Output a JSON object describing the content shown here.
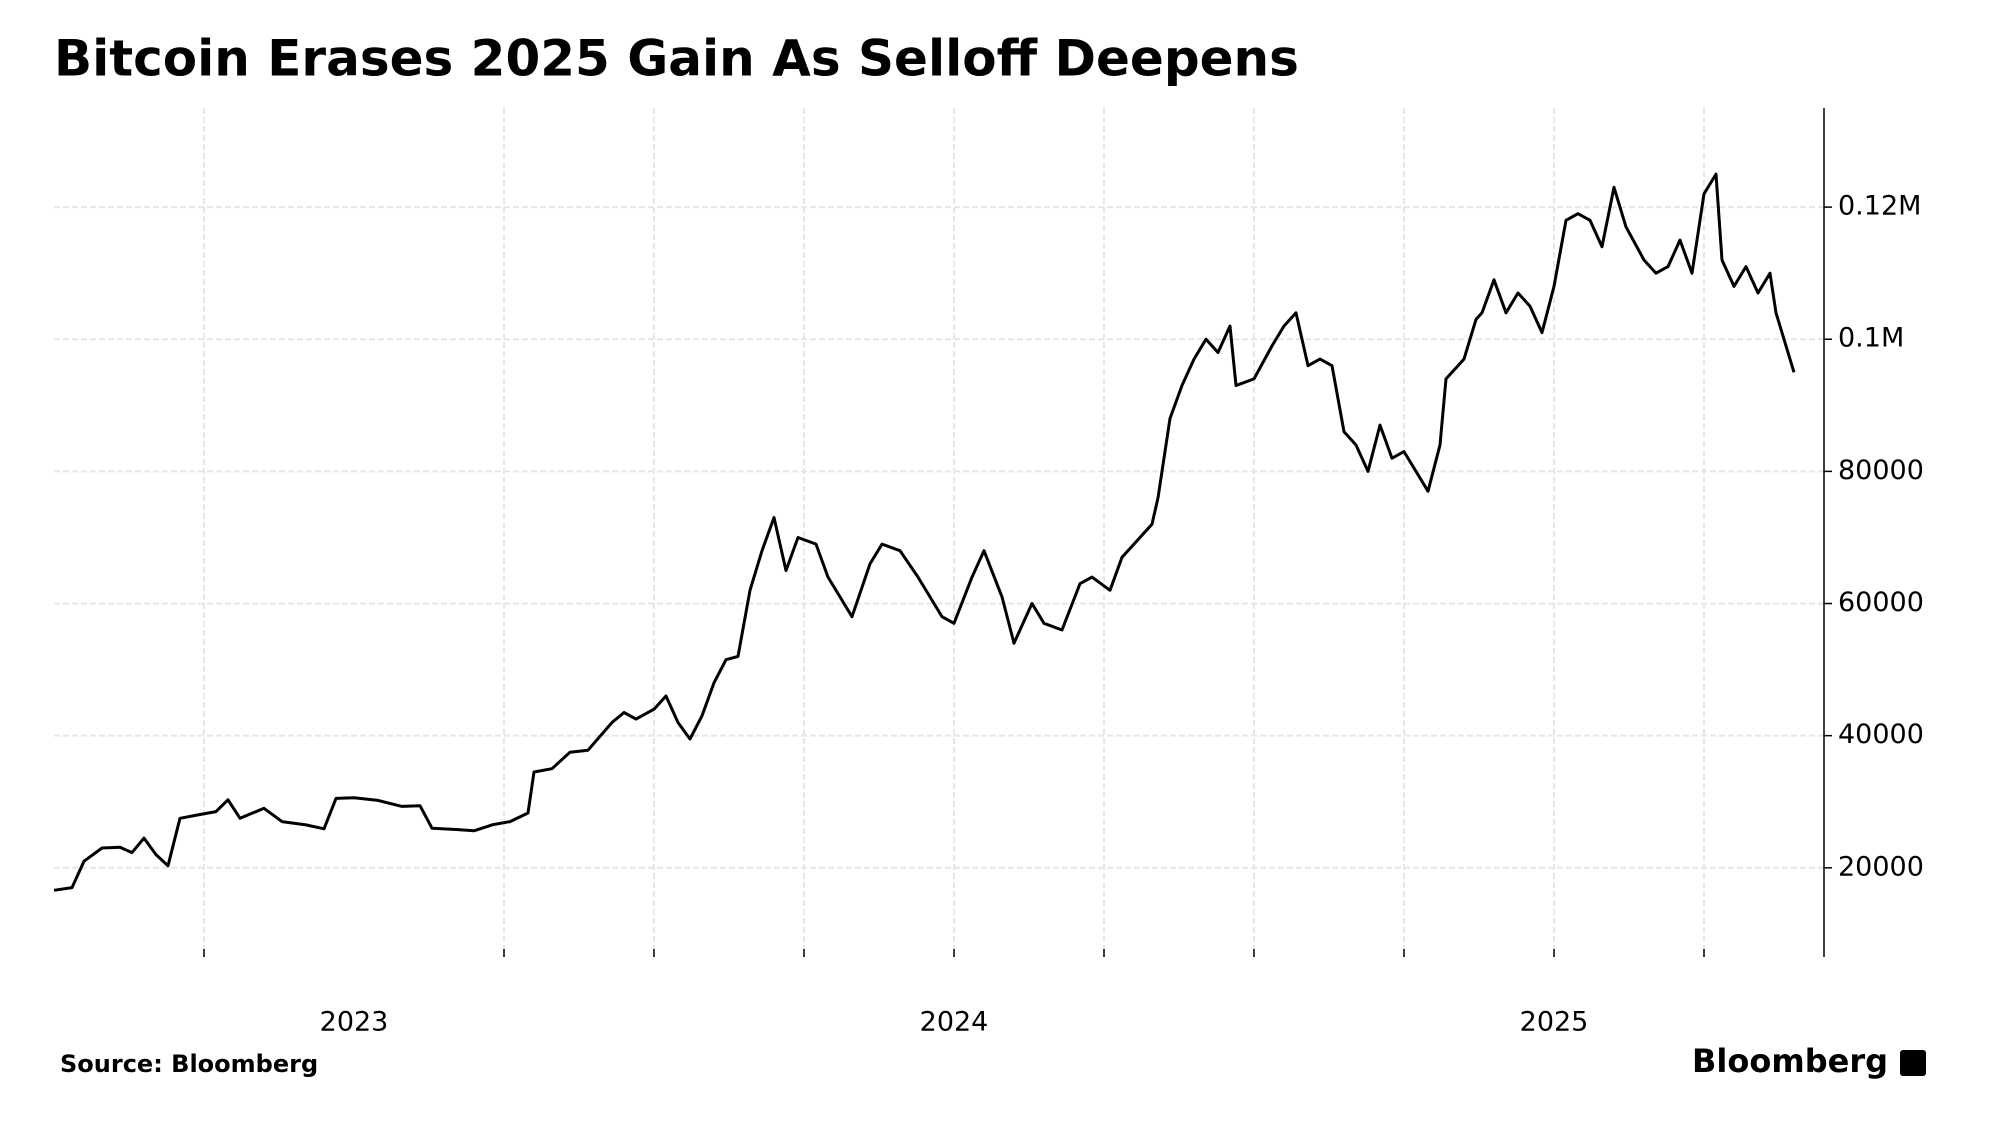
{
  "chart_data": {
    "type": "line",
    "title": "Bitcoin Erases 2025 Gain As Selloff Deepens",
    "source": "Source: Bloomberg",
    "brand": "Bloomberg",
    "color": "#000000",
    "grid": true,
    "xlim": [
      2023.0,
      2025.95
    ],
    "xticks": [
      {
        "value": 2023.5,
        "label": "2023"
      },
      {
        "value": 2024.5,
        "label": "2024"
      },
      {
        "value": 2025.5,
        "label": "2025"
      }
    ],
    "xgrid": [
      2023.25,
      2023.75,
      2024.0,
      2024.25,
      2024.5,
      2024.75,
      2025.0,
      2025.25,
      2025.5,
      2025.75
    ],
    "ylim": [
      6500,
      135000
    ],
    "yticks": [
      20000,
      40000,
      60000,
      80000,
      {
        "value": 100000,
        "label": "0.1M"
      },
      {
        "value": 120000,
        "label": "0.12M"
      }
    ],
    "x": [
      2023.0,
      2023.03,
      2023.05,
      2023.08,
      2023.11,
      2023.13,
      2023.15,
      2023.17,
      2023.19,
      2023.21,
      2023.24,
      2023.27,
      2023.29,
      2023.31,
      2023.35,
      2023.38,
      2023.42,
      2023.45,
      2023.47,
      2023.5,
      2023.54,
      2023.58,
      2023.61,
      2023.63,
      2023.67,
      2023.7,
      2023.73,
      2023.76,
      2023.79,
      2023.8,
      2023.83,
      2023.86,
      2023.89,
      2023.93,
      2023.95,
      2023.97,
      2024.0,
      2024.02,
      2024.04,
      2024.06,
      2024.08,
      2024.1,
      2024.12,
      2024.14,
      2024.16,
      2024.18,
      2024.2,
      2024.22,
      2024.24,
      2024.27,
      2024.29,
      2024.31,
      2024.33,
      2024.36,
      2024.38,
      2024.41,
      2024.44,
      2024.46,
      2024.48,
      2024.5,
      2024.53,
      2024.55,
      2024.58,
      2024.6,
      2024.63,
      2024.65,
      2024.68,
      2024.71,
      2024.73,
      2024.76,
      2024.78,
      2024.8,
      2024.83,
      2024.84,
      2024.86,
      2024.88,
      2024.9,
      2024.92,
      2024.94,
      2024.96,
      2024.97,
      2025.0,
      2025.03,
      2025.05,
      2025.07,
      2025.09,
      2025.11,
      2025.13,
      2025.15,
      2025.17,
      2025.19,
      2025.21,
      2025.23,
      2025.25,
      2025.27,
      2025.29,
      2025.31,
      2025.32,
      2025.35,
      2025.37,
      2025.38,
      2025.4,
      2025.42,
      2025.44,
      2025.46,
      2025.48,
      2025.5,
      2025.52,
      2025.54,
      2025.56,
      2025.58,
      2025.6,
      2025.62,
      2025.65,
      2025.67,
      2025.69,
      2025.71,
      2025.73,
      2025.75,
      2025.77,
      2025.78,
      2025.8,
      2025.82,
      2025.84,
      2025.86,
      2025.87,
      2025.89,
      2025.9
    ],
    "values": [
      16600,
      17000,
      21000,
      23000,
      23100,
      22300,
      24500,
      22000,
      20300,
      27500,
      28000,
      28500,
      30300,
      27500,
      29000,
      27000,
      26500,
      25900,
      30500,
      30600,
      30200,
      29300,
      29400,
      26000,
      25800,
      25600,
      26500,
      27000,
      28300,
      34500,
      35000,
      37500,
      37800,
      42000,
      43500,
      42500,
      44000,
      46000,
      42000,
      39500,
      43000,
      48000,
      51500,
      52000,
      62000,
      68000,
      73000,
      65000,
      70000,
      69000,
      64000,
      61000,
      58000,
      66000,
      69000,
      68000,
      64000,
      61000,
      58000,
      57000,
      64000,
      68000,
      61000,
      54000,
      60000,
      57000,
      56000,
      63000,
      64000,
      62000,
      67000,
      69000,
      72000,
      76000,
      88000,
      93000,
      97000,
      100000,
      98000,
      102000,
      93000,
      94000,
      99000,
      102000,
      104000,
      96000,
      97000,
      96000,
      86000,
      84000,
      80000,
      87000,
      82000,
      83000,
      80000,
      77000,
      84000,
      94000,
      97000,
      103000,
      104000,
      109000,
      104000,
      107000,
      105000,
      101000,
      108000,
      118000,
      119000,
      118000,
      114000,
      123000,
      117000,
      112000,
      110000,
      111000,
      115000,
      110000,
      122000,
      125000,
      112000,
      108000,
      111000,
      107000,
      110000,
      104000,
      98000,
      95000
    ]
  }
}
